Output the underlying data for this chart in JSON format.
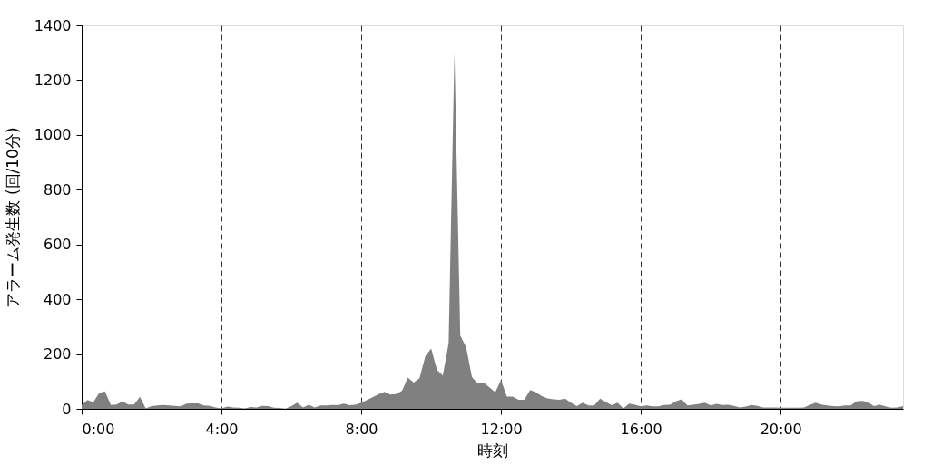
{
  "chart_data": {
    "type": "area",
    "xlabel": "時刻",
    "ylabel": "アラーム発生数 (回/10分)",
    "x": [
      0,
      0.1667,
      0.3333,
      0.5,
      0.6667,
      0.8333,
      1,
      1.1667,
      1.3333,
      1.5,
      1.6667,
      1.8333,
      2,
      2.1667,
      2.3333,
      2.5,
      2.6667,
      2.8333,
      3,
      3.1667,
      3.3333,
      3.5,
      3.6667,
      3.8333,
      4,
      4.1667,
      4.3333,
      4.5,
      4.6667,
      4.8333,
      5,
      5.1667,
      5.3333,
      5.5,
      5.6667,
      5.8333,
      6,
      6.1667,
      6.3333,
      6.5,
      6.6667,
      6.8333,
      7,
      7.1667,
      7.3333,
      7.5,
      7.6667,
      7.8333,
      8,
      8.1667,
      8.3333,
      8.5,
      8.6667,
      8.8333,
      9,
      9.1667,
      9.3333,
      9.5,
      9.6667,
      9.8333,
      10,
      10.1667,
      10.3333,
      10.5,
      10.6667,
      10.8333,
      11,
      11.1667,
      11.3333,
      11.5,
      11.6667,
      11.8333,
      12,
      12.1667,
      12.3333,
      12.5,
      12.6667,
      12.8333,
      13,
      13.1667,
      13.3333,
      13.5,
      13.6667,
      13.8333,
      14,
      14.1667,
      14.3333,
      14.5,
      14.6667,
      14.8333,
      15,
      15.1667,
      15.3333,
      15.5,
      15.6667,
      15.8333,
      16,
      16.1667,
      16.3333,
      16.5,
      16.6667,
      16.8333,
      17,
      17.1667,
      17.3333,
      17.5,
      17.6667,
      17.8333,
      18,
      18.1667,
      18.3333,
      18.5,
      18.6667,
      18.8333,
      19,
      19.1667,
      19.3333,
      19.5,
      19.6667,
      19.8333,
      20,
      20.1667,
      20.3333,
      20.5,
      20.6667,
      20.8333,
      21,
      21.1667,
      21.3333,
      21.5,
      21.6667,
      21.8333,
      22,
      22.1667,
      22.3333,
      22.5,
      22.6667,
      22.8333,
      23,
      23.1667,
      23.3333,
      23.5
    ],
    "series": [
      {
        "color": "#808080",
        "values": [
          14,
          32,
          24,
          58,
          64,
          14,
          16,
          27,
          16,
          16,
          44,
          2,
          10,
          12,
          14,
          12,
          11,
          9,
          19,
          20,
          20,
          12,
          11,
          5,
          2,
          8,
          5,
          4,
          2,
          7,
          5,
          11,
          10,
          4,
          3,
          1,
          10,
          22,
          5,
          15,
          5,
          12,
          12,
          14,
          13,
          19,
          13,
          15,
          22,
          32,
          43,
          54,
          62,
          52,
          54,
          66,
          114,
          96,
          112,
          192,
          220,
          142,
          122,
          239,
          1300,
          267,
          226,
          116,
          93,
          96,
          79,
          60,
          105,
          45,
          45,
          33,
          33,
          69,
          60,
          46,
          38,
          35,
          33,
          37,
          22,
          10,
          22,
          12,
          12,
          37,
          25,
          13,
          22,
          2,
          19,
          15,
          9,
          12,
          9,
          9,
          14,
          15,
          27,
          35,
          12,
          15,
          18,
          22,
          12,
          18,
          14,
          15,
          11,
          5,
          8,
          14,
          11,
          5,
          5,
          5,
          4,
          4,
          4,
          4,
          5,
          14,
          22,
          16,
          12,
          10,
          9,
          12,
          12,
          27,
          29,
          25,
          10,
          15,
          9,
          4,
          5,
          10
        ]
      }
    ],
    "xlim": [
      0,
      23.5
    ],
    "xticks": [
      {
        "value": 0,
        "label": "0:00"
      },
      {
        "value": 4,
        "label": "4:00"
      },
      {
        "value": 8,
        "label": "8:00"
      },
      {
        "value": 12,
        "label": "12:00"
      },
      {
        "value": 16,
        "label": "16:00"
      },
      {
        "value": 20,
        "label": "20:00"
      }
    ],
    "ylim": [
      0,
      1400
    ],
    "yticks": [
      0,
      200,
      400,
      600,
      800,
      1000,
      1200,
      1400
    ],
    "grid": "x"
  }
}
